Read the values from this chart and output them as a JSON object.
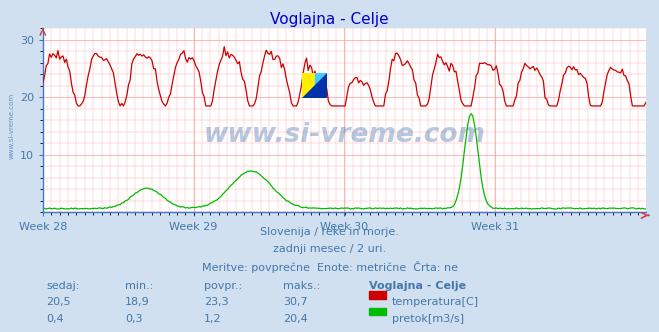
{
  "title": "Voglajna - Celje",
  "title_color": "#0000cc",
  "bg_color": "#d0e0f0",
  "plot_bg_color": "#ffffff",
  "grid_color": "#ffaaaa",
  "temp_color": "#cc0000",
  "flow_color": "#00bb00",
  "watermark_text_color": "#3366aa",
  "watermark_text": "www.si-vreme.com",
  "side_watermark_color": "#5577aa",
  "x_tick_labels": [
    "Week 28",
    "Week 29",
    "Week 30",
    "Week 31"
  ],
  "ylim": [
    0,
    32
  ],
  "yticks": [
    10,
    20,
    30
  ],
  "tick_color": "#4477aa",
  "footer_line1": "Slovenija / reke in morje.",
  "footer_line2": "zadnji mesec / 2 uri.",
  "footer_line3": "Meritve: povprečne  Enote: metrične  Črta: ne",
  "footer_color": "#4477aa",
  "table_headers": [
    "sedaj:",
    "min.:",
    "povpr.:",
    "maks.:",
    "Voglajna - Celje"
  ],
  "table_row1_vals": [
    "20,5",
    "18,9",
    "23,3",
    "30,7"
  ],
  "table_row2_vals": [
    "0,4",
    "0,3",
    "1,2",
    "20,4"
  ],
  "table_color": "#4477aa",
  "legend_labels": [
    "temperatura[C]",
    "pretok[m3/s]"
  ],
  "n_points": 360
}
